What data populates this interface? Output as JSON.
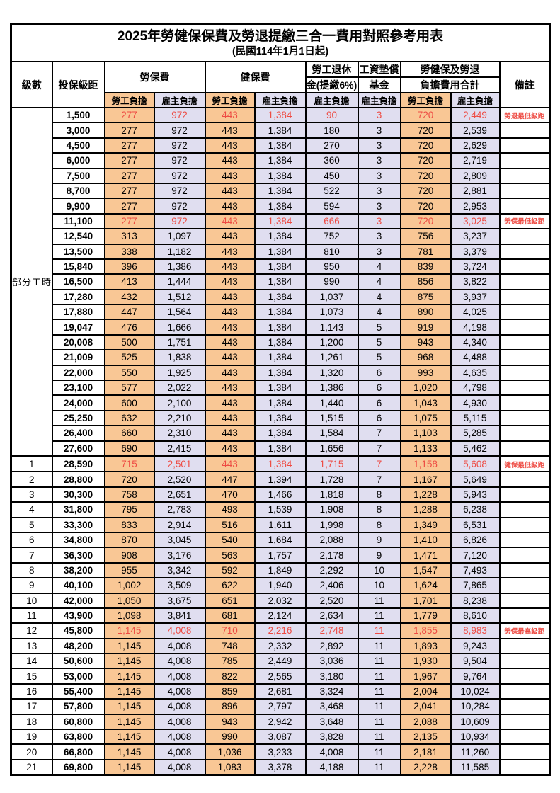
{
  "title": "2025年勞健保保費及勞退提繳三合一費用對照參考用表",
  "subtitle": "(民國114年1月1日起)",
  "header": {
    "level": "級數",
    "bracket": "投保級距",
    "labor_ins": "勞保費",
    "health_ins": "健保費",
    "pension_line1": "勞工退休",
    "pension_line2": "金(提繳6%)",
    "wage_fund_line1": "工資墊償",
    "wage_fund_line2": "基金",
    "total_line1": "勞健保及勞退",
    "total_line2": "負擔費用合計",
    "remark": "備註",
    "employee": "勞工負擔",
    "employer": "雇主負擔"
  },
  "part_time_label": "部分工時",
  "colors": {
    "employee_bg": "#f9c795",
    "employer_bg": "#e0def0",
    "highlight_red": "#ee4b43",
    "border": "#000000"
  },
  "rows": [
    {
      "level": "",
      "bracket": "1,500",
      "values": [
        "277",
        "972",
        "443",
        "1,384",
        "90",
        "3",
        "720",
        "2,449"
      ],
      "red": true,
      "remark": "勞退最低級距"
    },
    {
      "level": "",
      "bracket": "3,000",
      "values": [
        "277",
        "972",
        "443",
        "1,384",
        "180",
        "3",
        "720",
        "2,539"
      ],
      "red": false,
      "remark": ""
    },
    {
      "level": "",
      "bracket": "4,500",
      "values": [
        "277",
        "972",
        "443",
        "1,384",
        "270",
        "3",
        "720",
        "2,629"
      ],
      "red": false,
      "remark": ""
    },
    {
      "level": "",
      "bracket": "6,000",
      "values": [
        "277",
        "972",
        "443",
        "1,384",
        "360",
        "3",
        "720",
        "2,719"
      ],
      "red": false,
      "remark": ""
    },
    {
      "level": "",
      "bracket": "7,500",
      "values": [
        "277",
        "972",
        "443",
        "1,384",
        "450",
        "3",
        "720",
        "2,809"
      ],
      "red": false,
      "remark": ""
    },
    {
      "level": "",
      "bracket": "8,700",
      "values": [
        "277",
        "972",
        "443",
        "1,384",
        "522",
        "3",
        "720",
        "2,881"
      ],
      "red": false,
      "remark": ""
    },
    {
      "level": "",
      "bracket": "9,900",
      "values": [
        "277",
        "972",
        "443",
        "1,384",
        "594",
        "3",
        "720",
        "2,953"
      ],
      "red": false,
      "remark": ""
    },
    {
      "level": "",
      "bracket": "11,100",
      "values": [
        "277",
        "972",
        "443",
        "1,384",
        "666",
        "3",
        "720",
        "3,025"
      ],
      "red": true,
      "remark": "勞保最低級距"
    },
    {
      "level": "",
      "bracket": "12,540",
      "values": [
        "313",
        "1,097",
        "443",
        "1,384",
        "752",
        "3",
        "756",
        "3,237"
      ],
      "red": false,
      "remark": ""
    },
    {
      "level": "",
      "bracket": "13,500",
      "values": [
        "338",
        "1,182",
        "443",
        "1,384",
        "810",
        "3",
        "781",
        "3,379"
      ],
      "red": false,
      "remark": ""
    },
    {
      "level": "",
      "bracket": "15,840",
      "values": [
        "396",
        "1,386",
        "443",
        "1,384",
        "950",
        "4",
        "839",
        "3,724"
      ],
      "red": false,
      "remark": ""
    },
    {
      "level": "",
      "bracket": "16,500",
      "values": [
        "413",
        "1,444",
        "443",
        "1,384",
        "990",
        "4",
        "856",
        "3,822"
      ],
      "red": false,
      "remark": ""
    },
    {
      "level": "",
      "bracket": "17,280",
      "values": [
        "432",
        "1,512",
        "443",
        "1,384",
        "1,037",
        "4",
        "875",
        "3,937"
      ],
      "red": false,
      "remark": ""
    },
    {
      "level": "",
      "bracket": "17,880",
      "values": [
        "447",
        "1,564",
        "443",
        "1,384",
        "1,073",
        "4",
        "890",
        "4,025"
      ],
      "red": false,
      "remark": ""
    },
    {
      "level": "",
      "bracket": "19,047",
      "values": [
        "476",
        "1,666",
        "443",
        "1,384",
        "1,143",
        "5",
        "919",
        "4,198"
      ],
      "red": false,
      "remark": ""
    },
    {
      "level": "",
      "bracket": "20,008",
      "values": [
        "500",
        "1,751",
        "443",
        "1,384",
        "1,200",
        "5",
        "943",
        "4,340"
      ],
      "red": false,
      "remark": ""
    },
    {
      "level": "",
      "bracket": "21,009",
      "values": [
        "525",
        "1,838",
        "443",
        "1,384",
        "1,261",
        "5",
        "968",
        "4,488"
      ],
      "red": false,
      "remark": ""
    },
    {
      "level": "",
      "bracket": "22,000",
      "values": [
        "550",
        "1,925",
        "443",
        "1,384",
        "1,320",
        "6",
        "993",
        "4,635"
      ],
      "red": false,
      "remark": ""
    },
    {
      "level": "",
      "bracket": "23,100",
      "values": [
        "577",
        "2,022",
        "443",
        "1,384",
        "1,386",
        "6",
        "1,020",
        "4,798"
      ],
      "red": false,
      "remark": ""
    },
    {
      "level": "",
      "bracket": "24,000",
      "values": [
        "600",
        "2,100",
        "443",
        "1,384",
        "1,440",
        "6",
        "1,043",
        "4,930"
      ],
      "red": false,
      "remark": ""
    },
    {
      "level": "",
      "bracket": "25,250",
      "values": [
        "632",
        "2,210",
        "443",
        "1,384",
        "1,515",
        "6",
        "1,075",
        "5,115"
      ],
      "red": false,
      "remark": ""
    },
    {
      "level": "",
      "bracket": "26,400",
      "values": [
        "660",
        "2,310",
        "443",
        "1,384",
        "1,584",
        "7",
        "1,103",
        "5,285"
      ],
      "red": false,
      "remark": ""
    },
    {
      "level": "",
      "bracket": "27,600",
      "values": [
        "690",
        "2,415",
        "443",
        "1,384",
        "1,656",
        "7",
        "1,133",
        "5,462"
      ],
      "red": false,
      "remark": ""
    },
    {
      "level": "1",
      "bracket": "28,590",
      "values": [
        "715",
        "2,501",
        "443",
        "1,384",
        "1,715",
        "7",
        "1,158",
        "5,608"
      ],
      "red": true,
      "remark": "健保最低級距",
      "sect": true
    },
    {
      "level": "2",
      "bracket": "28,800",
      "values": [
        "720",
        "2,520",
        "447",
        "1,394",
        "1,728",
        "7",
        "1,167",
        "5,649"
      ],
      "red": false,
      "remark": ""
    },
    {
      "level": "3",
      "bracket": "30,300",
      "values": [
        "758",
        "2,651",
        "470",
        "1,466",
        "1,818",
        "8",
        "1,228",
        "5,943"
      ],
      "red": false,
      "remark": ""
    },
    {
      "level": "4",
      "bracket": "31,800",
      "values": [
        "795",
        "2,783",
        "493",
        "1,539",
        "1,908",
        "8",
        "1,288",
        "6,238"
      ],
      "red": false,
      "remark": ""
    },
    {
      "level": "5",
      "bracket": "33,300",
      "values": [
        "833",
        "2,914",
        "516",
        "1,611",
        "1,998",
        "8",
        "1,349",
        "6,531"
      ],
      "red": false,
      "remark": ""
    },
    {
      "level": "6",
      "bracket": "34,800",
      "values": [
        "870",
        "3,045",
        "540",
        "1,684",
        "2,088",
        "9",
        "1,410",
        "6,826"
      ],
      "red": false,
      "remark": ""
    },
    {
      "level": "7",
      "bracket": "36,300",
      "values": [
        "908",
        "3,176",
        "563",
        "1,757",
        "2,178",
        "9",
        "1,471",
        "7,120"
      ],
      "red": false,
      "remark": ""
    },
    {
      "level": "8",
      "bracket": "38,200",
      "values": [
        "955",
        "3,342",
        "592",
        "1,849",
        "2,292",
        "10",
        "1,547",
        "7,493"
      ],
      "red": false,
      "remark": ""
    },
    {
      "level": "9",
      "bracket": "40,100",
      "values": [
        "1,002",
        "3,509",
        "622",
        "1,940",
        "2,406",
        "10",
        "1,624",
        "7,865"
      ],
      "red": false,
      "remark": ""
    },
    {
      "level": "10",
      "bracket": "42,000",
      "values": [
        "1,050",
        "3,675",
        "651",
        "2,032",
        "2,520",
        "11",
        "1,701",
        "8,238"
      ],
      "red": false,
      "remark": ""
    },
    {
      "level": "11",
      "bracket": "43,900",
      "values": [
        "1,098",
        "3,841",
        "681",
        "2,124",
        "2,634",
        "11",
        "1,779",
        "8,610"
      ],
      "red": false,
      "remark": ""
    },
    {
      "level": "12",
      "bracket": "45,800",
      "values": [
        "1,145",
        "4,008",
        "710",
        "2,216",
        "2,748",
        "11",
        "1,855",
        "8,983"
      ],
      "red": true,
      "remark": "勞保最高級距"
    },
    {
      "level": "13",
      "bracket": "48,200",
      "values": [
        "1,145",
        "4,008",
        "748",
        "2,332",
        "2,892",
        "11",
        "1,893",
        "9,243"
      ],
      "red": false,
      "remark": ""
    },
    {
      "level": "14",
      "bracket": "50,600",
      "values": [
        "1,145",
        "4,008",
        "785",
        "2,449",
        "3,036",
        "11",
        "1,930",
        "9,504"
      ],
      "red": false,
      "remark": ""
    },
    {
      "level": "15",
      "bracket": "53,000",
      "values": [
        "1,145",
        "4,008",
        "822",
        "2,565",
        "3,180",
        "11",
        "1,967",
        "9,764"
      ],
      "red": false,
      "remark": ""
    },
    {
      "level": "16",
      "bracket": "55,400",
      "values": [
        "1,145",
        "4,008",
        "859",
        "2,681",
        "3,324",
        "11",
        "2,004",
        "10,024"
      ],
      "red": false,
      "remark": ""
    },
    {
      "level": "17",
      "bracket": "57,800",
      "values": [
        "1,145",
        "4,008",
        "896",
        "2,797",
        "3,468",
        "11",
        "2,041",
        "10,284"
      ],
      "red": false,
      "remark": ""
    },
    {
      "level": "18",
      "bracket": "60,800",
      "values": [
        "1,145",
        "4,008",
        "943",
        "2,942",
        "3,648",
        "11",
        "2,088",
        "10,609"
      ],
      "red": false,
      "remark": ""
    },
    {
      "level": "19",
      "bracket": "63,800",
      "values": [
        "1,145",
        "4,008",
        "990",
        "3,087",
        "3,828",
        "11",
        "2,135",
        "10,934"
      ],
      "red": false,
      "remark": ""
    },
    {
      "level": "20",
      "bracket": "66,800",
      "values": [
        "1,145",
        "4,008",
        "1,036",
        "3,233",
        "4,008",
        "11",
        "2,181",
        "11,260"
      ],
      "red": false,
      "remark": ""
    },
    {
      "level": "21",
      "bracket": "69,800",
      "values": [
        "1,145",
        "4,008",
        "1,083",
        "3,378",
        "4,188",
        "11",
        "2,228",
        "11,585"
      ],
      "red": false,
      "remark": ""
    }
  ]
}
